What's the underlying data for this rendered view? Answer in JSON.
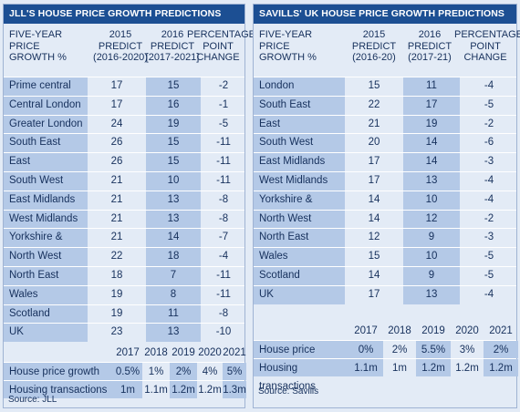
{
  "jll": {
    "title": "JLL'S HOUSE PRICE GROWTH PREDICTIONS",
    "headers": [
      "FIVE-YEAR\nPRICE\nGROWTH %",
      "2015\nPREDICT\n(2016-2020)",
      "2016\nPREDICT\n[2017-2021]",
      "PERCENTAGE\nPOINT\nCHANGE"
    ],
    "rows": [
      [
        "Prime central London",
        "17",
        "15",
        "-2"
      ],
      [
        "Central London",
        "17",
        "16",
        "-1"
      ],
      [
        "Greater London",
        "24",
        "19",
        "-5"
      ],
      [
        "South East",
        "26",
        "15",
        "-11"
      ],
      [
        "East",
        "26",
        "15",
        "-11"
      ],
      [
        "South West",
        "21",
        "10",
        "-11"
      ],
      [
        "East Midlands",
        "21",
        "13",
        "-8"
      ],
      [
        "West Midlands",
        "21",
        "13",
        "-8"
      ],
      [
        "Yorkshire & Humber",
        "21",
        "14",
        "-7"
      ],
      [
        "North West",
        "22",
        "18",
        "-4"
      ],
      [
        "North East",
        "18",
        "7",
        "-11"
      ],
      [
        "Wales",
        "19",
        "8",
        "-11"
      ],
      [
        "Scotland",
        "19",
        "11",
        "-8"
      ],
      [
        "UK",
        "23",
        "13",
        "-10"
      ]
    ],
    "years": [
      "2017",
      "2018",
      "2019",
      "2020",
      "2021"
    ],
    "yearly": [
      {
        "label": "House price growth",
        "values": [
          "0.5%",
          "1%",
          "2%",
          "4%",
          "5%"
        ]
      },
      {
        "label": "Housing transactions",
        "values": [
          "1m",
          "1.1m",
          "1.2m",
          "1.2m",
          "1.3m"
        ]
      }
    ],
    "source": "Source: JLL"
  },
  "savills": {
    "title": "SAVILLS' UK HOUSE PRICE GROWTH PREDICTIONS",
    "headers": [
      "FIVE-YEAR\nPRICE\nGROWTH %",
      "2015\nPREDICT\n(2016-20)",
      "2016\nPREDICT\n(2017-21)",
      "PERCENTAGE\nPOINT\nCHANGE"
    ],
    "rows": [
      [
        "London",
        "15",
        "11",
        "-4"
      ],
      [
        "South East",
        "22",
        "17",
        "-5"
      ],
      [
        "East",
        "21",
        "19",
        "-2"
      ],
      [
        "South West",
        "20",
        "14",
        "-6"
      ],
      [
        "East Midlands",
        "17",
        "14",
        "-3"
      ],
      [
        "West Midlands",
        "17",
        "13",
        "-4"
      ],
      [
        "Yorkshire & Humber",
        "14",
        "10",
        "-4"
      ],
      [
        "North West",
        "14",
        "12",
        "-2"
      ],
      [
        "North East",
        "12",
        "9",
        "-3"
      ],
      [
        "Wales",
        "15",
        "10",
        "-5"
      ],
      [
        "Scotland",
        "14",
        "9",
        "-5"
      ],
      [
        "UK",
        "17",
        "13",
        "-4"
      ]
    ],
    "years": [
      "2017",
      "2018",
      "2019",
      "2020",
      "2021"
    ],
    "yearly": [
      {
        "label": "House price growth",
        "values": [
          "0%",
          "2%",
          "5.5%",
          "3%",
          "2%"
        ]
      },
      {
        "label": "Housing transactions",
        "values": [
          "1.1m",
          "1m",
          "1.2m",
          "1.2m",
          "1.2m"
        ]
      }
    ],
    "source": "Source: Savills"
  }
}
